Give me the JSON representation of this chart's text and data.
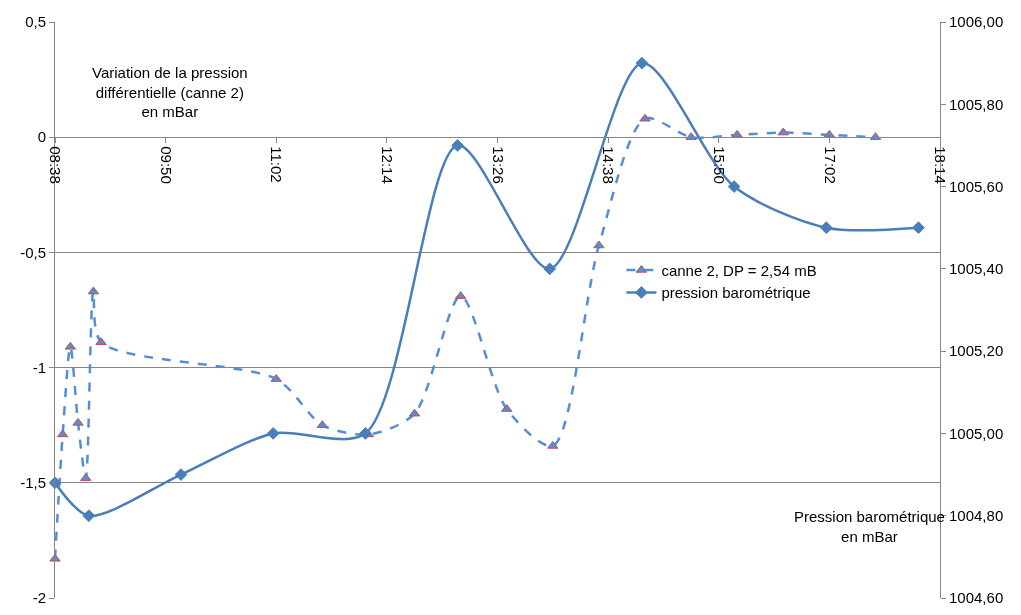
{
  "chart_data": {
    "type": "line",
    "ylabel": "Variation de la pression différentielle (canne 2) en mBar",
    "y2label": "Pression barométrique en mBar",
    "xlim": [
      8.6333,
      18.2333
    ],
    "xticks": [
      {
        "value": 8.6333,
        "label": "08:38"
      },
      {
        "value": 9.8333,
        "label": "09:50"
      },
      {
        "value": 11.0333,
        "label": "11:02"
      },
      {
        "value": 12.2333,
        "label": "12:14"
      },
      {
        "value": 13.4333,
        "label": "13:26"
      },
      {
        "value": 14.6333,
        "label": "14:38"
      },
      {
        "value": 15.8333,
        "label": "15:50"
      },
      {
        "value": 17.0333,
        "label": "17:02"
      },
      {
        "value": 18.2333,
        "label": "18:14"
      }
    ],
    "ylim": [
      -2,
      0.5
    ],
    "yticks": [
      {
        "value": -2,
        "label": "-2"
      },
      {
        "value": -1.5,
        "label": "-1,5"
      },
      {
        "value": -1,
        "label": "-1"
      },
      {
        "value": -0.5,
        "label": "-0,5"
      },
      0,
      {
        "value": 0.5,
        "label": "0,5"
      }
    ],
    "y2lim": [
      1004.6,
      1006.0
    ],
    "y2ticks": [
      {
        "value": 1004.6,
        "label": "1004,60"
      },
      {
        "value": 1004.8,
        "label": "1004,80"
      },
      {
        "value": 1005.0,
        "label": "1005,00"
      },
      {
        "value": 1005.2,
        "label": "1005,20"
      },
      {
        "value": 1005.4,
        "label": "1005,40"
      },
      {
        "value": 1005.6,
        "label": "1005,60"
      },
      {
        "value": 1005.8,
        "label": "1005,80"
      },
      {
        "value": 1006.0,
        "label": "1006,00"
      }
    ],
    "grid": "y",
    "legend": "right",
    "series": [
      {
        "name": "canne 2, DP = 2,54 mB",
        "color": "#558ed5",
        "marker": "triangle",
        "line_style": "dashed",
        "x": [
          8.6333,
          8.7167,
          8.8,
          8.8833,
          8.9667,
          9.05,
          9.1333,
          11.0333,
          11.5333,
          12.0333,
          12.5333,
          13.0333,
          13.5333,
          14.0333,
          14.5333,
          15.0333,
          15.5333,
          16.0333,
          16.5333,
          17.0333,
          17.5333
        ],
        "values": [
          -1.83,
          -1.29,
          -0.91,
          -1.24,
          -1.48,
          -0.67,
          -0.89,
          -1.05,
          -1.25,
          -1.29,
          -1.2,
          -0.69,
          -1.18,
          -1.34,
          -0.47,
          0.08,
          0.0,
          0.01,
          0.02,
          0.01,
          0.0
        ]
      },
      {
        "name": "pression barométrique",
        "color": "#4a7ebb",
        "marker": "diamond",
        "line_style": "solid",
        "axis": "y2",
        "x": [
          8.6333,
          9.0,
          10.0,
          11.0,
          12.0,
          13.0,
          14.0,
          15.0,
          16.0,
          17.0,
          18.0
        ],
        "values": [
          1004.88,
          1004.8,
          1004.9,
          1005.0,
          1005.0,
          1005.7,
          1005.4,
          1005.9,
          1005.6,
          1005.5,
          1005.5
        ]
      }
    ]
  }
}
